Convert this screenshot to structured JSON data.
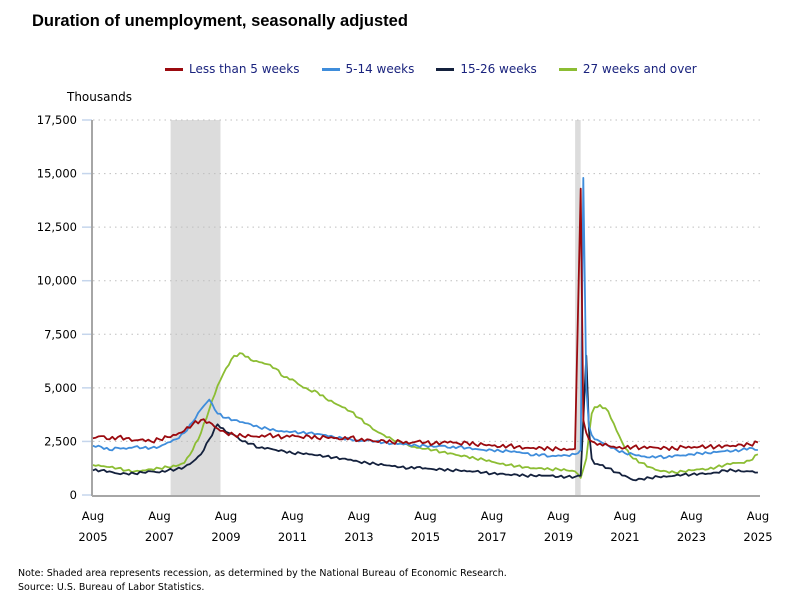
{
  "chart_data": {
    "type": "line",
    "title": "Duration of unemployment, seasonally adjusted",
    "ylabel": "Thousands",
    "xlabel": "",
    "ylim": [
      0,
      17500
    ],
    "yticks": [
      0,
      2500,
      5000,
      7500,
      10000,
      12500,
      15000,
      17500
    ],
    "ytick_labels": [
      "0",
      "2,500",
      "5,000",
      "7,500",
      "10,000",
      "12,500",
      "15,000",
      "17,500"
    ],
    "xlim": [
      2005.583,
      2025.583
    ],
    "xticks": [
      2005.583,
      2007.583,
      2009.583,
      2011.583,
      2013.583,
      2015.583,
      2017.583,
      2019.583,
      2021.583,
      2023.583,
      2025.583
    ],
    "xtick_labels": [
      [
        "Aug",
        "2005"
      ],
      [
        "Aug",
        "2007"
      ],
      [
        "Aug",
        "2009"
      ],
      [
        "Aug",
        "2011"
      ],
      [
        "Aug",
        "2013"
      ],
      [
        "Aug",
        "2015"
      ],
      [
        "Aug",
        "2017"
      ],
      [
        "Aug",
        "2019"
      ],
      [
        "Aug",
        "2021"
      ],
      [
        "Aug",
        "2023"
      ],
      [
        "Aug",
        "2025"
      ]
    ],
    "grid": "horizontal-dotted",
    "legend_position": "top",
    "recessions": [
      {
        "start": 2007.917,
        "end": 2009.417
      },
      {
        "start": 2020.083,
        "end": 2020.25
      }
    ],
    "x": [
      2005.58,
      2005.83,
      2006.08,
      2006.33,
      2006.58,
      2006.83,
      2007.08,
      2007.33,
      2007.58,
      2007.83,
      2008.08,
      2008.33,
      2008.58,
      2008.83,
      2009.08,
      2009.33,
      2009.58,
      2009.83,
      2010.08,
      2010.33,
      2010.58,
      2010.83,
      2011.08,
      2011.33,
      2011.58,
      2011.83,
      2012.08,
      2012.33,
      2012.58,
      2012.83,
      2013.08,
      2013.33,
      2013.58,
      2013.83,
      2014.08,
      2014.33,
      2014.58,
      2014.83,
      2015.08,
      2015.33,
      2015.58,
      2015.83,
      2016.08,
      2016.33,
      2016.58,
      2016.83,
      2017.08,
      2017.33,
      2017.58,
      2017.83,
      2018.08,
      2018.33,
      2018.58,
      2018.83,
      2019.08,
      2019.33,
      2019.58,
      2019.83,
      2020.08,
      2020.25,
      2020.33,
      2020.42,
      2020.5,
      2020.58,
      2020.67,
      2020.83,
      2021.08,
      2021.33,
      2021.58,
      2021.83,
      2022.08,
      2022.33,
      2022.58,
      2022.83,
      2023.08,
      2023.33,
      2023.58,
      2023.83,
      2024.08,
      2024.33,
      2024.58,
      2024.83,
      2025.08,
      2025.33,
      2025.58
    ],
    "series": [
      {
        "name": "Less than 5 weeks",
        "color": "#9b0a0f",
        "values": [
          2650,
          2750,
          2600,
          2700,
          2650,
          2550,
          2600,
          2500,
          2600,
          2700,
          2800,
          3000,
          3300,
          3500,
          3400,
          3100,
          2900,
          2800,
          2750,
          2750,
          2700,
          2800,
          2750,
          2700,
          2800,
          2700,
          2750,
          2650,
          2700,
          2650,
          2600,
          2700,
          2550,
          2600,
          2500,
          2550,
          2450,
          2500,
          2400,
          2500,
          2450,
          2400,
          2450,
          2500,
          2400,
          2450,
          2350,
          2350,
          2300,
          2250,
          2300,
          2250,
          2200,
          2200,
          2200,
          2150,
          2150,
          2100,
          2150,
          14300,
          3500,
          2900,
          2600,
          2500,
          2450,
          2400,
          2300,
          2200,
          2200,
          2250,
          2200,
          2250,
          2200,
          2200,
          2150,
          2250,
          2200,
          2250,
          2250,
          2250,
          2300,
          2300,
          2350,
          2350,
          2450
        ]
      },
      {
        "name": "5-14 weeks",
        "color": "#3f8ddb",
        "values": [
          2300,
          2250,
          2100,
          2200,
          2150,
          2250,
          2200,
          2200,
          2250,
          2450,
          2600,
          2900,
          3400,
          4000,
          4450,
          3800,
          3600,
          3500,
          3400,
          3300,
          3150,
          3100,
          3000,
          2950,
          2950,
          2900,
          2900,
          2850,
          2800,
          2700,
          2650,
          2600,
          2500,
          2550,
          2500,
          2450,
          2400,
          2400,
          2350,
          2300,
          2300,
          2250,
          2300,
          2200,
          2250,
          2200,
          2150,
          2100,
          2100,
          2050,
          2050,
          2000,
          1950,
          1850,
          1900,
          1800,
          1850,
          1850,
          1900,
          2100,
          14800,
          5000,
          3200,
          2800,
          2600,
          2500,
          2300,
          2100,
          1950,
          1900,
          1800,
          1750,
          1800,
          1750,
          1850,
          1850,
          1900,
          1950,
          1950,
          2000,
          2050,
          2050,
          2100,
          2200,
          2100
        ]
      },
      {
        "name": "15-26 weeks",
        "color": "#14213d",
        "values": [
          1150,
          1150,
          1100,
          1000,
          1000,
          1000,
          1050,
          1100,
          1050,
          1150,
          1200,
          1300,
          1550,
          1900,
          2600,
          3300,
          2950,
          2800,
          2500,
          2400,
          2200,
          2200,
          2100,
          2050,
          1950,
          1950,
          1900,
          1850,
          1800,
          1750,
          1700,
          1650,
          1550,
          1500,
          1450,
          1400,
          1350,
          1300,
          1250,
          1300,
          1250,
          1200,
          1200,
          1150,
          1150,
          1100,
          1100,
          1050,
          1000,
          1000,
          950,
          950,
          900,
          900,
          900,
          900,
          850,
          850,
          850,
          900,
          3500,
          6500,
          3000,
          1700,
          1450,
          1400,
          1250,
          1050,
          900,
          700,
          750,
          800,
          850,
          850,
          900,
          950,
          950,
          1000,
          1000,
          1050,
          1150,
          1150,
          1100,
          1100,
          1050
        ]
      },
      {
        "name": "27 weeks and over",
        "color": "#8cbd33",
        "values": [
          1400,
          1350,
          1300,
          1250,
          1150,
          1100,
          1150,
          1200,
          1250,
          1300,
          1350,
          1500,
          2100,
          2900,
          4000,
          5100,
          5900,
          6500,
          6600,
          6300,
          6200,
          6100,
          5900,
          5500,
          5400,
          5100,
          4900,
          4800,
          4500,
          4300,
          4100,
          3900,
          3600,
          3300,
          3000,
          2800,
          2600,
          2450,
          2300,
          2200,
          2150,
          2100,
          2000,
          1950,
          1850,
          1800,
          1700,
          1650,
          1550,
          1450,
          1400,
          1350,
          1300,
          1250,
          1250,
          1200,
          1200,
          1150,
          1100,
          800,
          1200,
          1700,
          2800,
          3800,
          4100,
          4200,
          3900,
          3000,
          2200,
          1700,
          1500,
          1300,
          1150,
          1100,
          1050,
          1100,
          1150,
          1200,
          1200,
          1300,
          1400,
          1500,
          1500,
          1600,
          1900
        ]
      }
    ]
  },
  "header": {
    "title": "Duration of unemployment, seasonally adjusted"
  },
  "legend": [
    {
      "label": "Less than 5 weeks",
      "color": "#9b0a0f"
    },
    {
      "label": "5-14 weeks",
      "color": "#3f8ddb"
    },
    {
      "label": "15-26 weeks",
      "color": "#14213d"
    },
    {
      "label": "27 weeks and over",
      "color": "#8cbd33"
    }
  ],
  "axis": {
    "ylabel": "Thousands"
  },
  "footer": {
    "note": "Note: Shaded area represents recession, as determined by the National Bureau of Economic Research.",
    "source": "Source: U.S. Bureau of Labor Statistics."
  }
}
